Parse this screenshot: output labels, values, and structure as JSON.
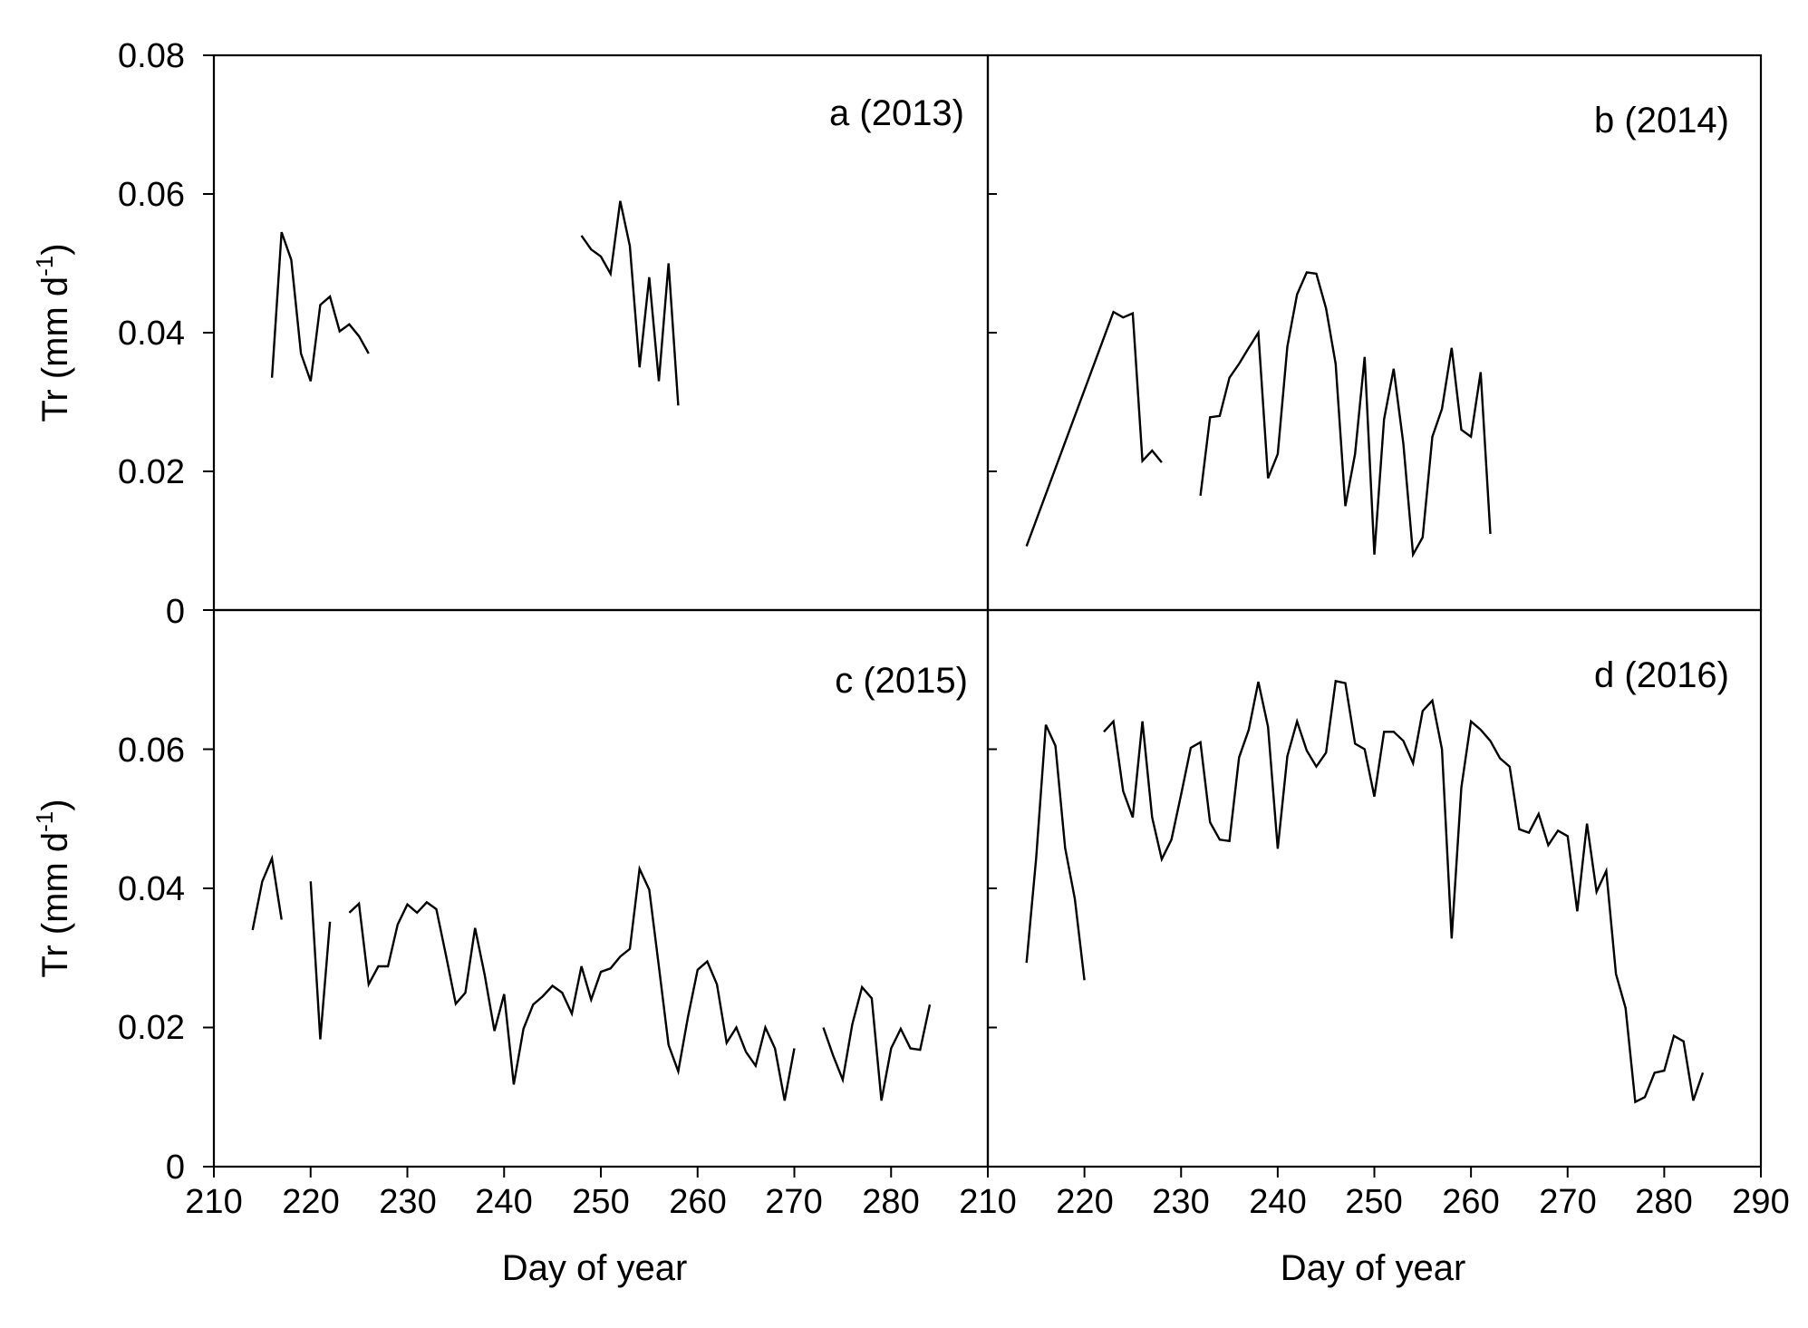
{
  "chart_data": [
    {
      "type": "line",
      "panel": "a",
      "label": "a (2013)",
      "xlabel": "",
      "ylabel": "Tr (mm d-1)",
      "xlim": [
        210,
        290
      ],
      "ylim": [
        0,
        0.08
      ],
      "segments": [
        {
          "x": [
            216,
            217,
            218,
            219,
            220,
            221,
            222,
            223,
            224,
            225,
            226
          ],
          "y": [
            0.0335,
            0.0545,
            0.0505,
            0.037,
            0.033,
            0.044,
            0.0452,
            0.0402,
            0.0412,
            0.0395,
            0.037
          ]
        },
        {
          "x": [
            248,
            249,
            250,
            251,
            252,
            253,
            254,
            255,
            256,
            257,
            258
          ],
          "y": [
            0.054,
            0.052,
            0.051,
            0.0485,
            0.059,
            0.0525,
            0.035,
            0.048,
            0.033,
            0.05,
            0.0295
          ]
        }
      ]
    },
    {
      "type": "line",
      "panel": "b",
      "label": "b (2014)",
      "xlabel": "Day of year",
      "ylabel": "",
      "xlim": [
        210,
        290
      ],
      "ylim": [
        0,
        0.08
      ],
      "segments": [
        {
          "x": [
            214,
            223,
            224,
            225,
            226,
            227,
            228
          ],
          "y": [
            0.0092,
            0.043,
            0.0422,
            0.0428,
            0.0215,
            0.023,
            0.0213
          ]
        },
        {
          "x": [
            232,
            233,
            234,
            235,
            236,
            237,
            238,
            239,
            240,
            241,
            242,
            243,
            244,
            245,
            246,
            247,
            248,
            249,
            250,
            251,
            252,
            253,
            254,
            255,
            256,
            257,
            258,
            259,
            260,
            261,
            262
          ],
          "y": [
            0.0165,
            0.0278,
            0.028,
            0.0335,
            0.0355,
            0.0378,
            0.04,
            0.019,
            0.0225,
            0.038,
            0.0455,
            0.0487,
            0.0485,
            0.0435,
            0.0355,
            0.015,
            0.0225,
            0.0365,
            0.008,
            0.0275,
            0.0348,
            0.024,
            0.008,
            0.0105,
            0.025,
            0.029,
            0.0378,
            0.026,
            0.025,
            0.0343,
            0.011
          ]
        }
      ]
    },
    {
      "type": "line",
      "panel": "c",
      "label": "c (2015)",
      "xlabel": "Day of year",
      "ylabel": "Tr (mm d-1)",
      "xlim": [
        210,
        290
      ],
      "ylim": [
        0,
        0.08
      ],
      "segments": [
        {
          "x": [
            214,
            215,
            216,
            217
          ],
          "y": [
            0.034,
            0.041,
            0.0443,
            0.0355
          ]
        },
        {
          "x": [
            220,
            221,
            222
          ],
          "y": [
            0.041,
            0.0183,
            0.0352
          ]
        },
        {
          "x": [
            224,
            225,
            226,
            227,
            228,
            229,
            230,
            231,
            232,
            233,
            234,
            235,
            236,
            237,
            238,
            239,
            240,
            241,
            242,
            243,
            244,
            245,
            246,
            247,
            248,
            249,
            250,
            251,
            252,
            253,
            254,
            255,
            256,
            257,
            258,
            259,
            260,
            261,
            262,
            263,
            264,
            265,
            266,
            267,
            268,
            269,
            270
          ],
          "y": [
            0.0365,
            0.0378,
            0.0262,
            0.0288,
            0.0288,
            0.0348,
            0.0377,
            0.0365,
            0.038,
            0.037,
            0.0303,
            0.0234,
            0.025,
            0.0343,
            0.0275,
            0.0195,
            0.0248,
            0.0118,
            0.0198,
            0.0233,
            0.0245,
            0.026,
            0.025,
            0.022,
            0.0288,
            0.024,
            0.028,
            0.0285,
            0.0302,
            0.0313,
            0.0428,
            0.0398,
            0.0288,
            0.0175,
            0.0137,
            0.0215,
            0.0283,
            0.0295,
            0.0262,
            0.0178,
            0.02,
            0.0165,
            0.0145,
            0.02,
            0.017,
            0.0095,
            0.017
          ]
        },
        {
          "x": [
            273,
            274,
            275,
            276,
            277,
            278,
            279,
            280,
            281,
            282,
            283,
            284
          ],
          "y": [
            0.02,
            0.016,
            0.0125,
            0.0205,
            0.0258,
            0.0242,
            0.0095,
            0.017,
            0.0198,
            0.017,
            0.0168,
            0.0233
          ]
        }
      ]
    },
    {
      "type": "line",
      "panel": "d",
      "label": "d (2016)",
      "xlabel": "",
      "ylabel": "",
      "xlim": [
        210,
        290
      ],
      "ylim": [
        0,
        0.08
      ],
      "segments": [
        {
          "x": [
            214,
            215,
            216,
            217,
            218,
            219,
            220
          ],
          "y": [
            0.0293,
            0.0443,
            0.0635,
            0.0605,
            0.0458,
            0.0385,
            0.0268
          ]
        },
        {
          "x": [
            222,
            223,
            224,
            225,
            226,
            227,
            228,
            229,
            230,
            231,
            232,
            233,
            234,
            235,
            236,
            237,
            238,
            239,
            240,
            241,
            242,
            243,
            244,
            245,
            246,
            247,
            248,
            249,
            250,
            251,
            252,
            253,
            254,
            255,
            256,
            257,
            258,
            259,
            260,
            261,
            262,
            263,
            264,
            265,
            266,
            267,
            268,
            269,
            270,
            271,
            272,
            273,
            274,
            275,
            276,
            277,
            278,
            279,
            280,
            281,
            282,
            283,
            284
          ],
          "y": [
            0.0625,
            0.064,
            0.054,
            0.0502,
            0.064,
            0.0502,
            0.0442,
            0.047,
            0.0535,
            0.0602,
            0.061,
            0.0495,
            0.047,
            0.0468,
            0.0588,
            0.0628,
            0.0697,
            0.0632,
            0.0457,
            0.059,
            0.064,
            0.0598,
            0.0575,
            0.0595,
            0.0698,
            0.0695,
            0.0608,
            0.06,
            0.0532,
            0.0625,
            0.0625,
            0.0612,
            0.058,
            0.0655,
            0.067,
            0.06,
            0.0328,
            0.0545,
            0.064,
            0.0628,
            0.0612,
            0.0587,
            0.0575,
            0.0485,
            0.048,
            0.0507,
            0.0462,
            0.0483,
            0.0475,
            0.0367,
            0.0493,
            0.0395,
            0.0425,
            0.0277,
            0.0228,
            0.0093,
            0.01,
            0.0135,
            0.0138,
            0.0188,
            0.018,
            0.0095,
            0.0135
          ]
        }
      ]
    }
  ],
  "axes": {
    "x_ticks_left": [
      "210",
      "220",
      "230",
      "240",
      "250",
      "260",
      "270",
      "280"
    ],
    "x_ticks_right": [
      "210",
      "220",
      "230",
      "240",
      "250",
      "260",
      "270",
      "280",
      "290"
    ],
    "y_ticks_top": [
      "0.08",
      "0.06",
      "0.04",
      "0.02"
    ],
    "y_ticks_bottom": [
      "0",
      "0.06",
      "0.04",
      "0.02",
      "0"
    ],
    "xlabel_left": "Day of year",
    "xlabel_right": "Day of year",
    "ylabel_top": {
      "main": "Tr (mm d",
      "sup": "-1",
      "close": ")"
    },
    "ylabel_bottom": {
      "main": "Tr (mm d",
      "sup": "-1",
      "close": ")"
    }
  }
}
